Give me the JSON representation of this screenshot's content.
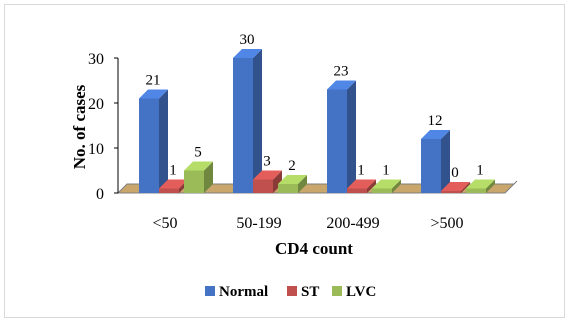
{
  "chart_data": {
    "type": "bar",
    "title": "",
    "xlabel": "CD4 count",
    "ylabel": "No. of cases",
    "ylim": [
      0,
      30
    ],
    "yticks": [
      0,
      10,
      20,
      30
    ],
    "grid": false,
    "legend_position": "bottom",
    "categories": [
      "<50",
      "50-199",
      "200-499",
      ">500"
    ],
    "series": [
      {
        "name": "Normal",
        "color": "#4472C4",
        "values": [
          21,
          30,
          23,
          12
        ]
      },
      {
        "name": "ST",
        "color": "#C0504D",
        "values": [
          1,
          3,
          1,
          0
        ]
      },
      {
        "name": "LVC",
        "color": "#9BBB59",
        "values": [
          5,
          2,
          1,
          1
        ]
      }
    ],
    "floor_color": "#C9A66B"
  }
}
